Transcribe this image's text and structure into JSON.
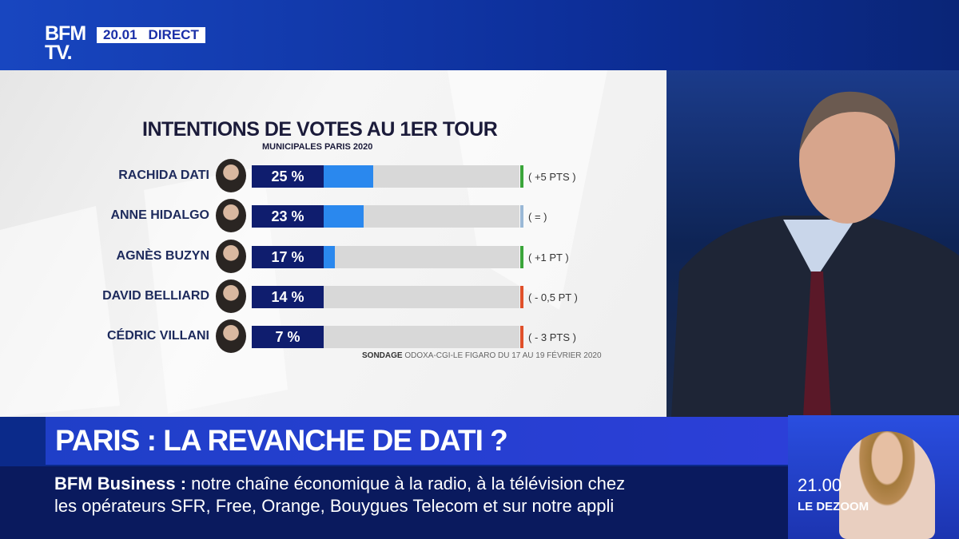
{
  "channel": {
    "logo": "BFM TV.",
    "time": "20.01",
    "live": "DIRECT"
  },
  "chart_data": {
    "type": "bar",
    "title": "INTENTIONS DE VOTES AU 1ER TOUR",
    "subtitle": "MUNICIPALES PARIS 2020",
    "categories": [
      "RACHIDA  DATI",
      "ANNE HIDALGO",
      "AGNÈS BUZYN",
      "DAVID BELLIARD",
      "CÉDRIC  VILLANI"
    ],
    "values": [
      25,
      23,
      17,
      14,
      7
    ],
    "value_labels": [
      "25 %",
      "23 %",
      "17 %",
      "14 %",
      "7 %"
    ],
    "changes": [
      "( +5 PTS )",
      "( = )",
      "( +1 PT )",
      "( - 0,5 PT )",
      "( - 3 PTS )"
    ],
    "change_colors": [
      "#3aa53a",
      "#9ab8d6",
      "#3aa53a",
      "#e0502a",
      "#e0502a"
    ],
    "ylim": [
      0,
      55
    ],
    "source_label": "SONDAGE",
    "source": "ODOXA-CGI-LE FIGARO DU 17 AU 19 FÉVRIER 2020"
  },
  "headline": "PARIS : LA REVANCHE DE DATI ?",
  "ticker": {
    "brand": "BFM Business :",
    "line1": " notre chaîne économique à la radio, à la télévision chez",
    "line2": "les opérateurs SFR, Free, Orange, Bouygues Telecom et sur notre appli"
  },
  "promo": {
    "time": "21.00",
    "show": "LE DEZOOM"
  },
  "colors": {
    "bar": "#2a88ee",
    "label": "#0f1d6e",
    "track": "#d8d8d8"
  }
}
